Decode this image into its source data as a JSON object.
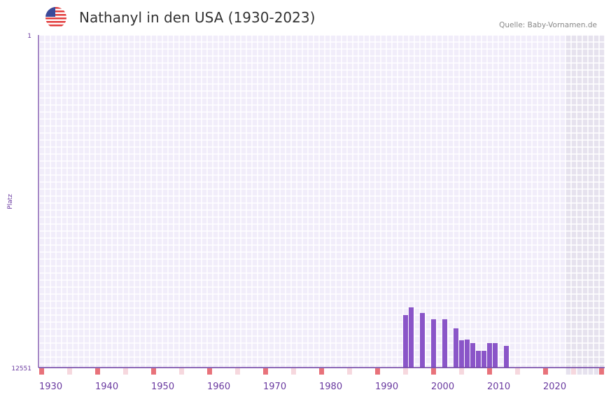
{
  "header": {
    "title": "Nathanyl in den USA (1930-2023)",
    "source": "Quelle: Baby-Vornamen.de",
    "flag_icon": "us-flag-icon"
  },
  "colors": {
    "bar": "#8a55c8",
    "axis": "#6a3aa0",
    "grid_bg": "#f1edfa",
    "future_bg": "#e6e2ee",
    "decade_marker": "#e8727a",
    "half_decade_marker": "#f6d8de",
    "label": "#6a3aa0"
  },
  "chart_data": {
    "type": "bar",
    "title": "Nathanyl in den USA (1930-2023)",
    "xlabel": "",
    "ylabel": "Platz",
    "ylim": [
      1,
      12551
    ],
    "y_inverted": true,
    "y_ticks": [
      "1",
      "12551"
    ],
    "x_range": [
      1930,
      2030
    ],
    "x_ticks": [
      "1930",
      "1940",
      "1950",
      "1960",
      "1970",
      "1980",
      "1990",
      "2000",
      "2010",
      "2020"
    ],
    "future_from": 2024,
    "x": [
      1995,
      1996,
      1998,
      2000,
      2002,
      2004,
      2005,
      2006,
      2007,
      2008,
      2009,
      2010,
      2011,
      2013
    ],
    "values": [
      10569,
      10279,
      10490,
      10727,
      10727,
      11071,
      11520,
      11494,
      11626,
      11917,
      11917,
      11626,
      11626,
      11732
    ]
  }
}
